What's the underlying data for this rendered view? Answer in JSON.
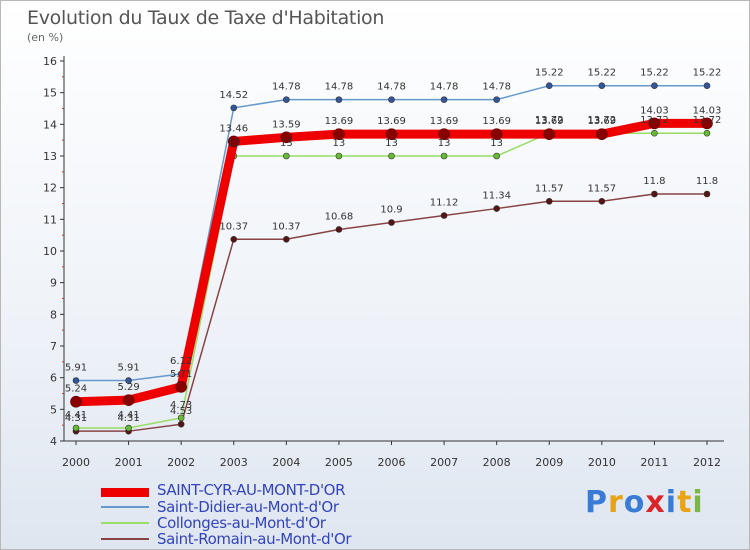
{
  "header": {
    "title": "Evolution du Taux de Taxe d'Habitation",
    "unit": "(en %)"
  },
  "logo": {
    "text": "Proxiti"
  },
  "chart_data": {
    "type": "line",
    "title": "Evolution du Taux de Taxe d'Habitation",
    "ylabel": "(en %)",
    "xlabel": "",
    "x": [
      "2000",
      "2001",
      "2002",
      "2003",
      "2004",
      "2005",
      "2006",
      "2007",
      "2008",
      "2009",
      "2010",
      "2011",
      "2012"
    ],
    "ylim": [
      4,
      16
    ],
    "yticks": [
      4,
      5,
      6,
      7,
      8,
      9,
      10,
      11,
      12,
      13,
      14,
      15,
      16
    ],
    "grid": false,
    "legend_position": "bottom-left",
    "series": [
      {
        "name": "SAINT-CYR-AU-MONT-D'OR",
        "color": "#ee0000",
        "marker_color": "#880000",
        "values": [
          5.24,
          5.29,
          5.71,
          13.46,
          13.59,
          13.69,
          13.69,
          13.69,
          13.69,
          13.69,
          13.69,
          14.03,
          14.03
        ],
        "labels": [
          "5.24",
          "5.29",
          "5.71",
          "13.46",
          "13.59",
          "13.69",
          "13.69",
          "13.69",
          "13.69",
          "13.69",
          "13.69",
          "14.03",
          "14.03"
        ]
      },
      {
        "name": "Saint-Didier-au-Mont-d'Or",
        "color": "#6699cc",
        "marker_color": "#335599",
        "values": [
          5.91,
          5.91,
          6.12,
          14.52,
          14.78,
          14.78,
          14.78,
          14.78,
          14.78,
          15.22,
          15.22,
          15.22,
          15.22
        ],
        "labels": [
          "5.91",
          "5.91",
          "6.12",
          "14.52",
          "14.78",
          "14.78",
          "14.78",
          "14.78",
          "14.78",
          "15.22",
          "15.22",
          "15.22",
          "15.22"
        ]
      },
      {
        "name": "Collonges-au-Mont-d'Or",
        "color": "#99dd66",
        "marker_color": "#66bb33",
        "values": [
          4.41,
          4.41,
          4.73,
          13,
          13,
          13,
          13,
          13,
          13,
          13.72,
          13.72,
          13.72,
          13.72
        ],
        "labels": [
          "4.41",
          "4.41",
          "4.73",
          "13",
          "13",
          "13",
          "13",
          "13",
          "13",
          "13.72",
          "13.72",
          "13.72",
          "13.72"
        ]
      },
      {
        "name": "Saint-Romain-au-Mont-d'Or",
        "color": "#884444",
        "marker_color": "#551515",
        "values": [
          4.31,
          4.31,
          4.53,
          10.37,
          10.37,
          10.68,
          10.9,
          11.12,
          11.34,
          11.57,
          11.57,
          11.8,
          11.8
        ],
        "labels": [
          "4.31",
          "4.31",
          "4.53",
          "10.37",
          "10.37",
          "10.68",
          "10.9",
          "11.12",
          "11.34",
          "11.57",
          "11.57",
          "11.8",
          "11.8"
        ]
      }
    ]
  }
}
